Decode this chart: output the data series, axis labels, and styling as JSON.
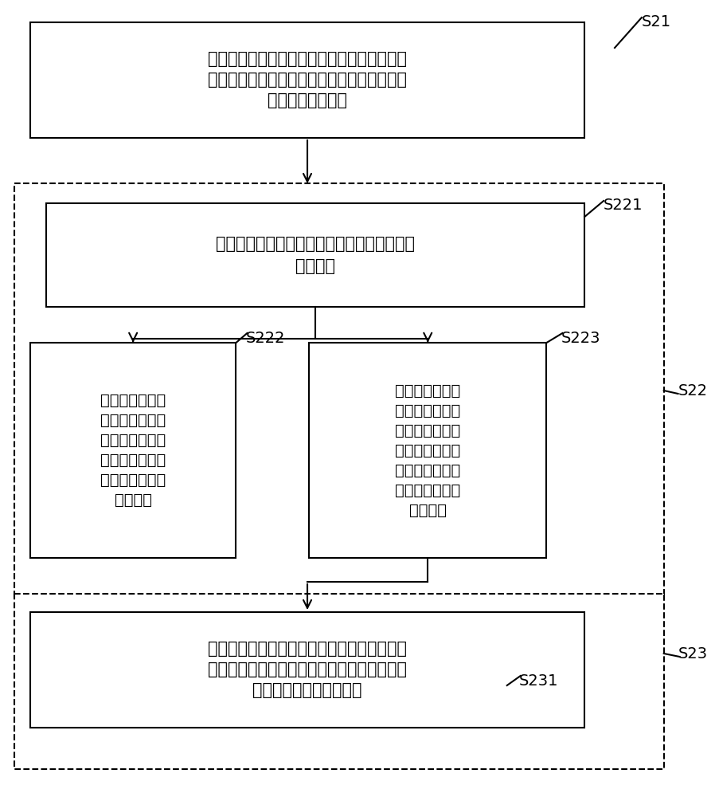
{
  "bg_color": "#ffffff",
  "box1_text_line1": "通过所述网络通路对所述基板管理控制器进行",
  "box1_text_line2": "检测，获取所述基板管理控制器在预设时间段",
  "box1_text_line3": "内的网络连接状态",
  "box2_text_line1": "判断所述预设时间段内的连接状态是否为保持",
  "box2_text_line2": "连接状态",
  "box3_lines": [
    "当所述预设时间",
    "段内的连接状态",
    "为保持连接状态",
    "时，确定所述基",
    "板管理控制器的",
    "网络正常"
  ],
  "box4_lines": [
    "当所述预设时间",
    "段内的连接状态",
    "为连接状态与下",
    "线状态交替出现",
    "时，确定所述基",
    "板管理控制器的",
    "网络异常"
  ],
  "box5_text_line1": "所述当所述基板管理控制器的网络异常时，通",
  "box5_text_line2": "过所述第一网口向所述第二网口分配网络，以",
  "box5_text_line3": "重启所述基板管理控制器",
  "label_S21": "S21",
  "label_S221": "S221",
  "label_S22": "S22",
  "label_S222": "S222",
  "label_S223": "S223",
  "label_S23": "S23",
  "label_S231": "S231"
}
